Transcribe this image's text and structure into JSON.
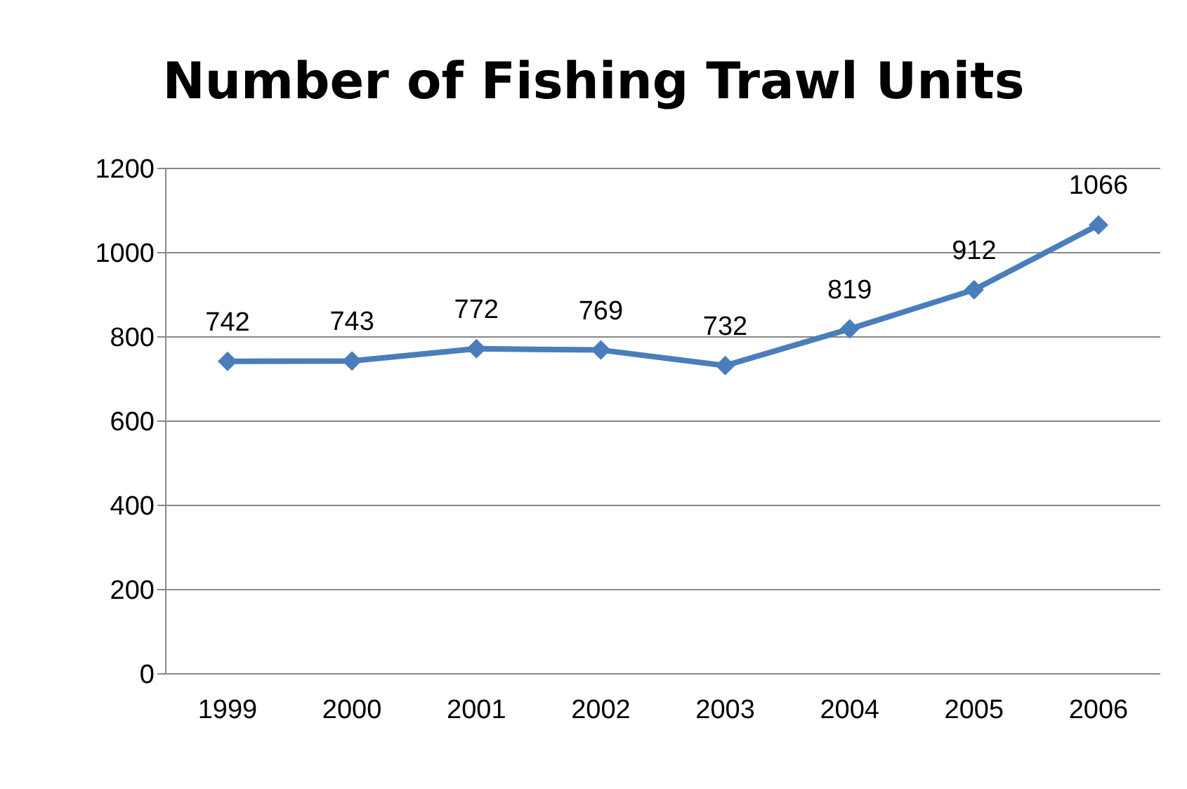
{
  "chart_data": {
    "type": "line",
    "title": "Number of Fishing Trawl Units",
    "categories": [
      "1999",
      "2000",
      "2001",
      "2002",
      "2003",
      "2004",
      "2005",
      "2006"
    ],
    "series": [
      {
        "color": "#4a7ebb",
        "values": [
          742,
          743,
          772,
          769,
          732,
          819,
          912,
          1066
        ]
      }
    ],
    "ylim": [
      0,
      1200
    ],
    "yticks": [
      0,
      200,
      400,
      600,
      800,
      1000,
      1200
    ],
    "grid": "y",
    "marker": "diamond",
    "line_style": "solid",
    "data_labels": true
  }
}
